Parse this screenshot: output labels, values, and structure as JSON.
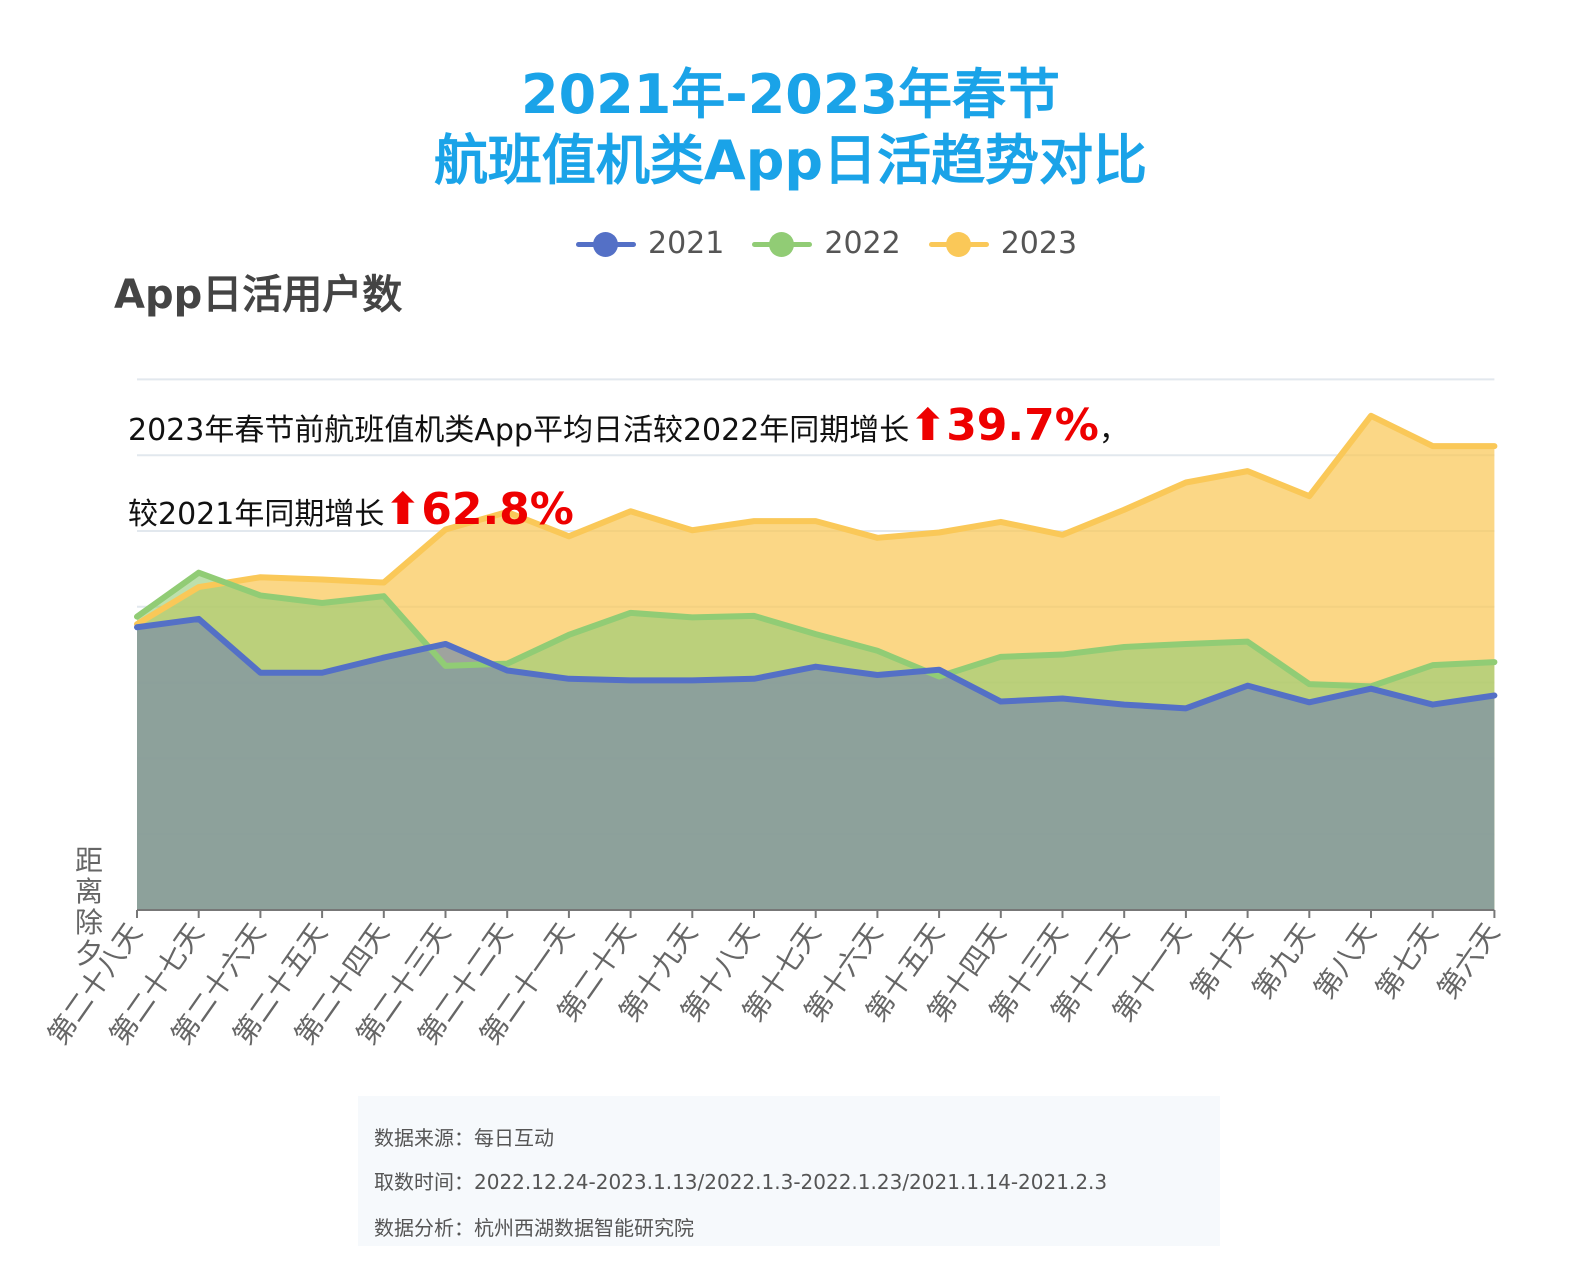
{
  "title": {
    "line1": "2021年-2023年春节",
    "line2": "航班值机类App日活趋势对比"
  },
  "colors": {
    "title": "#1aa3e8",
    "s2021": "#5470c6",
    "s2022": "#91cc75",
    "s2023": "#fac858",
    "highlight": "#ee0000"
  },
  "annotation": {
    "line1_text": "2023年春节前航班值机类App平均日活较2022年同期增长",
    "line1_pct": "39.7%",
    "line1_suffix": "，",
    "line2_text": "较2021年同期增长",
    "line2_pct": "62.8%",
    "arrow": "⬆"
  },
  "footer": {
    "source": "数据来源：每日互动",
    "period": "取数时间：2022.12.24-2023.1.13/2022.1.3-2022.1.23/2021.1.14-2021.2.3",
    "analysis": "数据分析：杭州西湖数据智能研究院"
  },
  "chart_data": {
    "type": "area",
    "ylabel": "App日活用户数",
    "xlabel": "距离除夕",
    "ylim": [
      0,
      7
    ],
    "categories": [
      "第二十八天",
      "第二十七天",
      "第二十六天",
      "第二十五天",
      "第二十四天",
      "第二十三天",
      "第二十二天",
      "第二十一天",
      "第二十天",
      "第十九天",
      "第十八天",
      "第十七天",
      "第十六天",
      "第十五天",
      "第十四天",
      "第十三天",
      "第十二天",
      "第十一天",
      "第十天",
      "第九天",
      "第八天",
      "第七天",
      "第六天"
    ],
    "legend": {
      "placement": "top-center"
    },
    "grid": true,
    "series": [
      {
        "name": "2021",
        "color_key": "s2021",
        "values": [
          3.73,
          3.84,
          3.13,
          3.13,
          3.33,
          3.51,
          3.16,
          3.05,
          3.03,
          3.03,
          3.05,
          3.21,
          3.1,
          3.17,
          2.75,
          2.79,
          2.71,
          2.66,
          2.96,
          2.74,
          2.92,
          2.71,
          2.83
        ]
      },
      {
        "name": "2022",
        "color_key": "s2022",
        "values": [
          3.87,
          4.45,
          4.15,
          4.05,
          4.14,
          3.22,
          3.25,
          3.63,
          3.92,
          3.86,
          3.88,
          3.64,
          3.42,
          3.08,
          3.34,
          3.37,
          3.47,
          3.51,
          3.54,
          2.98,
          2.95,
          3.23,
          3.27
        ]
      },
      {
        "name": "2023",
        "color_key": "s2023",
        "values": [
          3.77,
          4.26,
          4.39,
          4.36,
          4.32,
          5.02,
          5.25,
          4.93,
          5.26,
          5.01,
          5.13,
          5.13,
          4.91,
          4.98,
          5.12,
          4.95,
          5.28,
          5.64,
          5.79,
          5.46,
          6.52,
          6.12,
          6.12
        ]
      }
    ]
  }
}
